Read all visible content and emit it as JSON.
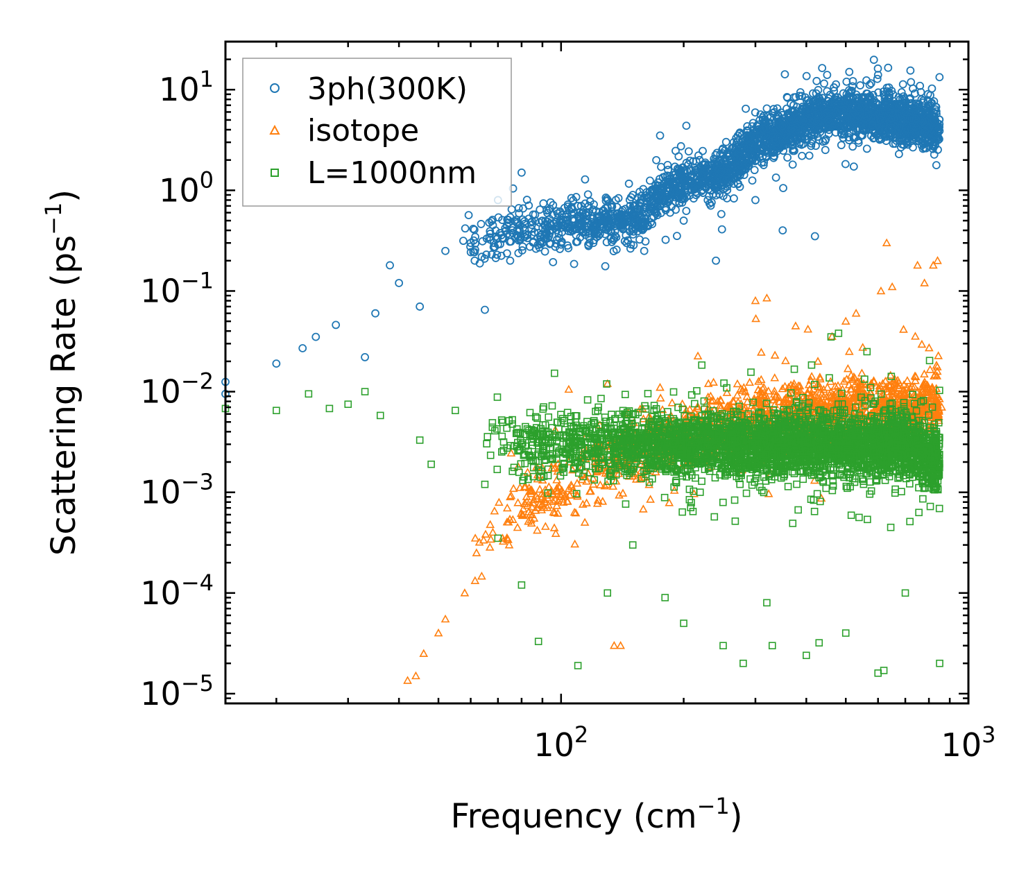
{
  "chart_data": {
    "type": "scatter",
    "xscale": "log",
    "yscale": "log",
    "xlim": [
      15,
      1000
    ],
    "ylim": [
      8e-06,
      30
    ],
    "xlabel_main": "Frequency (cm",
    "xlabel_sup": "−1",
    "xlabel_end": ")",
    "ylabel_main": "Scattering Rate (ps",
    "ylabel_sup": "−1",
    "ylabel_end": ")",
    "x_ticks": [
      {
        "value": 100,
        "base": "10",
        "exp": "2"
      },
      {
        "value": 1000,
        "base": "10",
        "exp": "3"
      }
    ],
    "y_ticks": [
      {
        "value": 10,
        "base": "10",
        "exp": "1"
      },
      {
        "value": 1,
        "base": "10",
        "exp": "0"
      },
      {
        "value": 0.1,
        "base": "10",
        "exp": "−1"
      },
      {
        "value": 0.01,
        "base": "10",
        "exp": "−2"
      },
      {
        "value": 0.001,
        "base": "10",
        "exp": "−3"
      },
      {
        "value": 0.0001,
        "base": "10",
        "exp": "−4"
      },
      {
        "value": 1e-05,
        "base": "10",
        "exp": "−5"
      }
    ],
    "legend_position": "top-left",
    "series": [
      {
        "name": "3ph(300K)",
        "color": "#1f77b4",
        "marker": "circle",
        "trend": [
          [
            15,
            0.01
          ],
          [
            20,
            0.02
          ],
          [
            30,
            0.05
          ],
          [
            40,
            0.1
          ],
          [
            50,
            0.2
          ],
          [
            70,
            0.4
          ],
          [
            100,
            0.45
          ],
          [
            150,
            0.5
          ],
          [
            180,
            1.0
          ],
          [
            250,
            1.5
          ],
          [
            300,
            3.0
          ],
          [
            400,
            5.0
          ],
          [
            500,
            6.0
          ],
          [
            600,
            5.5
          ],
          [
            800,
            4.5
          ],
          [
            850,
            4.0
          ]
        ],
        "points": [
          [
            15,
            0.0095
          ],
          [
            15,
            0.0125
          ],
          [
            20,
            0.019
          ],
          [
            23.2,
            0.027
          ],
          [
            25,
            0.035
          ],
          [
            28,
            0.046
          ],
          [
            33,
            0.022
          ],
          [
            35,
            0.06
          ],
          [
            38,
            0.18
          ],
          [
            40,
            0.12
          ],
          [
            45,
            0.07
          ],
          [
            52,
            0.25
          ],
          [
            60,
            0.3
          ],
          [
            65,
            0.065
          ],
          [
            70,
            0.8
          ],
          [
            75,
            0.2
          ],
          [
            80,
            1.5
          ],
          [
            90,
            0.3
          ],
          [
            110,
            0.7
          ],
          [
            120,
            0.3
          ],
          [
            150,
            0.9
          ],
          [
            160,
            0.25
          ],
          [
            175,
            3.5
          ],
          [
            200,
            0.5
          ],
          [
            240,
            0.2
          ],
          [
            260,
            1.2
          ],
          [
            270,
            3.0
          ],
          [
            300,
            0.8
          ],
          [
            320,
            6.5
          ],
          [
            350,
            0.4
          ],
          [
            380,
            5.0
          ],
          [
            420,
            0.35
          ],
          [
            450,
            14
          ],
          [
            510,
            15
          ],
          [
            550,
            4.0
          ],
          [
            600,
            14
          ],
          [
            650,
            4.0
          ],
          [
            700,
            6.0
          ],
          [
            800,
            5.0
          ],
          [
            840,
            3.5
          ]
        ]
      },
      {
        "name": "isotope",
        "color": "#ff7f0e",
        "marker": "triangle",
        "trend": [
          [
            42,
            1.3e-05
          ],
          [
            48,
            3e-05
          ],
          [
            55,
            8e-05
          ],
          [
            62,
            0.0002
          ],
          [
            70,
            0.0005
          ],
          [
            80,
            0.0008
          ],
          [
            100,
            0.001
          ],
          [
            130,
            0.002
          ],
          [
            170,
            0.003
          ],
          [
            220,
            0.004
          ],
          [
            300,
            0.006
          ],
          [
            400,
            0.006
          ],
          [
            500,
            0.007
          ],
          [
            600,
            0.007
          ],
          [
            700,
            0.007
          ],
          [
            850,
            0.008
          ]
        ],
        "points": [
          [
            42,
            1.35e-05
          ],
          [
            44,
            1.5e-05
          ],
          [
            46,
            2.5e-05
          ],
          [
            50,
            4e-05
          ],
          [
            52,
            5.5e-05
          ],
          [
            58,
            0.0001
          ],
          [
            62,
            0.00025
          ],
          [
            68,
            0.0004
          ],
          [
            75,
            0.0009
          ],
          [
            90,
            0.0009
          ],
          [
            100,
            0.0009
          ],
          [
            120,
            0.0012
          ],
          [
            135,
            3e-05
          ],
          [
            140,
            3e-05
          ],
          [
            130,
            0.012
          ],
          [
            175,
            0.011
          ],
          [
            230,
            0.012
          ],
          [
            300,
            0.08
          ],
          [
            320,
            0.085
          ],
          [
            500,
            0.05
          ],
          [
            510,
            0.025
          ],
          [
            530,
            0.06
          ],
          [
            610,
            0.1
          ],
          [
            630,
            0.3
          ],
          [
            650,
            0.11
          ],
          [
            750,
            0.18
          ],
          [
            780,
            0.12
          ],
          [
            820,
            0.18
          ],
          [
            840,
            0.2
          ],
          [
            860,
            0.007
          ]
        ]
      },
      {
        "name": "L=1000nm",
        "color": "#2ca02c",
        "marker": "square",
        "trend": [
          [
            15,
            0.0068
          ],
          [
            20,
            0.0065
          ],
          [
            25,
            0.0068
          ],
          [
            30,
            0.006
          ],
          [
            40,
            0.006
          ],
          [
            50,
            0.005
          ],
          [
            60,
            0.004
          ],
          [
            80,
            0.003
          ],
          [
            100,
            0.003
          ],
          [
            150,
            0.003
          ],
          [
            200,
            0.003
          ],
          [
            300,
            0.003
          ],
          [
            400,
            0.003
          ],
          [
            500,
            0.003
          ],
          [
            600,
            0.003
          ],
          [
            700,
            0.003
          ],
          [
            850,
            0.002
          ]
        ],
        "points": [
          [
            15,
            0.0068
          ],
          [
            20,
            0.0065
          ],
          [
            24,
            0.0095
          ],
          [
            27,
            0.0068
          ],
          [
            30,
            0.0075
          ],
          [
            33,
            0.01
          ],
          [
            36,
            0.0058
          ],
          [
            45,
            0.0033
          ],
          [
            48,
            0.0019
          ],
          [
            55,
            0.0065
          ],
          [
            65,
            0.0012
          ],
          [
            70,
            0.00035
          ],
          [
            80,
            0.00012
          ],
          [
            88,
            3.3e-05
          ],
          [
            110,
            1.9e-05
          ],
          [
            130,
            0.0001
          ],
          [
            150,
            0.0003
          ],
          [
            180,
            9e-05
          ],
          [
            200,
            5e-05
          ],
          [
            250,
            3e-05
          ],
          [
            280,
            2e-05
          ],
          [
            330,
            3e-05
          ],
          [
            400,
            2.4e-05
          ],
          [
            430,
            3.2e-05
          ],
          [
            460,
            0.035
          ],
          [
            480,
            0.038
          ],
          [
            500,
            4e-05
          ],
          [
            600,
            1.6e-05
          ],
          [
            620,
            1.7e-05
          ],
          [
            700,
            0.0001
          ],
          [
            850,
            2e-05
          ],
          [
            320,
            8e-05
          ]
        ]
      }
    ]
  }
}
